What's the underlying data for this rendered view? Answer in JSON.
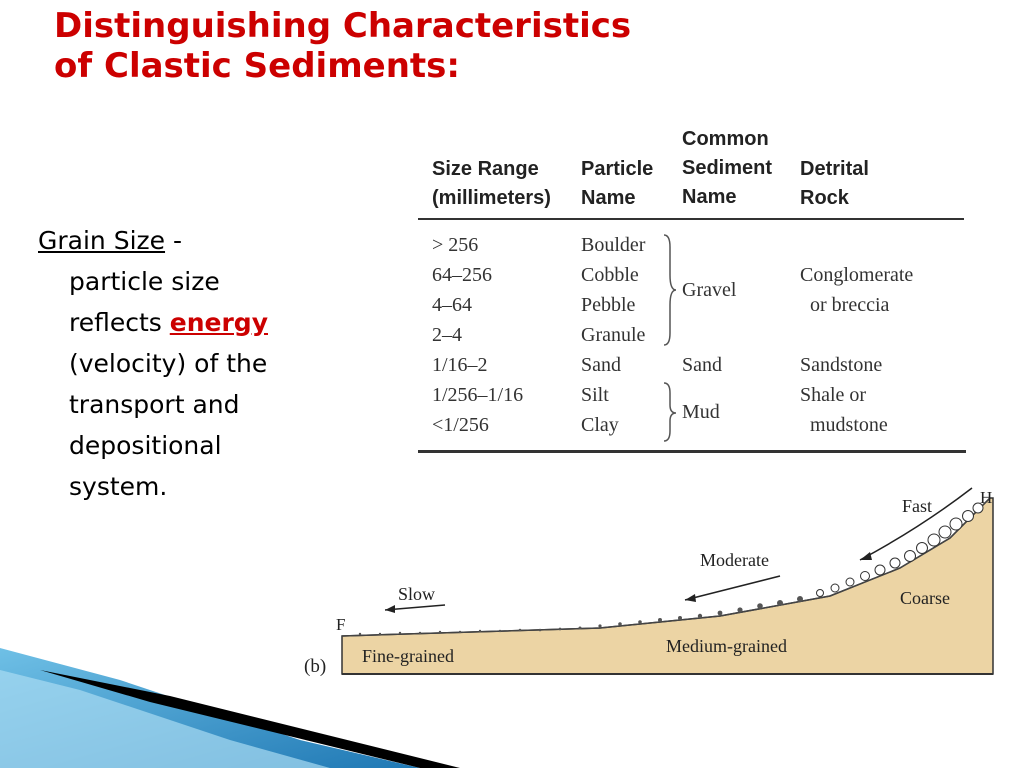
{
  "slide": {
    "title_line1": "Distinguishing Characteristics",
    "title_line2": "of Clastic Sediments:",
    "colors": {
      "title": "#cc0000",
      "emphasis": "#cc0000",
      "sediment_fill": "#ecd4a4",
      "accent_blue": "#2a7fb5"
    }
  },
  "bullet": {
    "term": "Grain Size",
    "dash": " -",
    "line2": "particle size",
    "line3_prefix": "reflects ",
    "emphasis": "energy",
    "line4": "(velocity) of the",
    "line5": "transport and",
    "line6": "depositional",
    "line7": "system."
  },
  "table": {
    "headers": {
      "size_range": [
        "Size Range",
        "(millimeters)"
      ],
      "particle_name": [
        "Particle",
        "Name"
      ],
      "common_name": [
        "Common",
        "Sediment",
        "Name"
      ],
      "detrital_rock": [
        "Detrital",
        "Rock"
      ]
    },
    "size_ranges": [
      "> 256",
      "64–256",
      "4–64",
      "2–4",
      "1/16–2",
      "1/256–1/16",
      "<1/256"
    ],
    "particles": [
      "Boulder",
      "Cobble",
      "Pebble",
      "Granule",
      "Sand",
      "Silt",
      "Clay"
    ],
    "common": {
      "gravel": "Gravel",
      "sand": "Sand",
      "mud": "Mud"
    },
    "rocks": {
      "gravel_1": "Conglomerate",
      "gravel_2": "or breccia",
      "sand": "Sandstone",
      "mud_1": "Shale or",
      "mud_2": "mudstone"
    }
  },
  "diagram": {
    "panel_label": "(b)",
    "end_left": "F",
    "end_right": "H",
    "arrows": {
      "fast": "Fast",
      "moderate": "Moderate",
      "slow": "Slow"
    },
    "zones": {
      "coarse": "Coarse",
      "medium": "Medium-grained",
      "fine": "Fine-grained"
    }
  }
}
